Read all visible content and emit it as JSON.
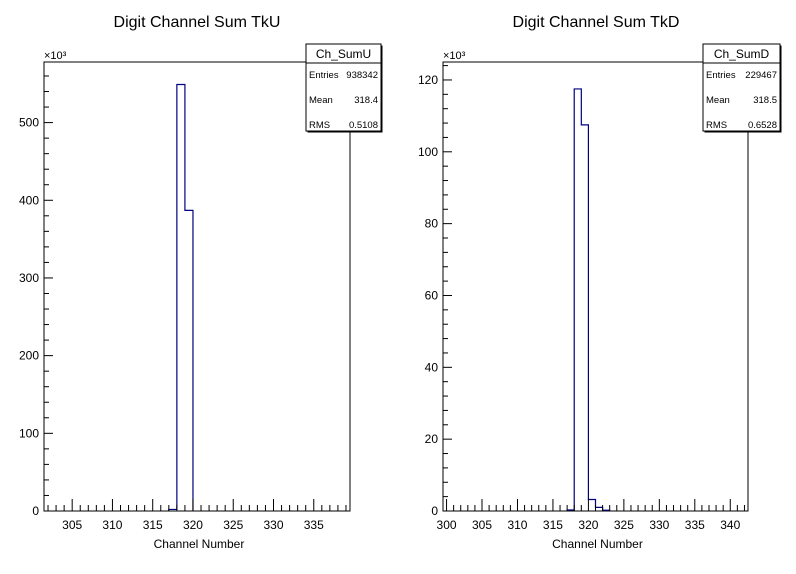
{
  "chart_data": [
    {
      "type": "bar",
      "title": "Digit Channel Sum TkU",
      "xlabel": "Channel Number",
      "ylabel": "",
      "y_multiplier": "×10³",
      "xlim": [
        301.5,
        339.5
      ],
      "ylim": [
        0,
        578
      ],
      "x_major_ticks": [
        305,
        310,
        315,
        320,
        325,
        330,
        335
      ],
      "y_major_ticks": [
        0,
        100,
        200,
        300,
        400,
        500
      ],
      "bin_width": 1,
      "bins": [
        {
          "x": 317.5,
          "value": 2
        },
        {
          "x": 318.5,
          "value": 549
        },
        {
          "x": 319.5,
          "value": 387
        }
      ],
      "stats": {
        "name": "Ch_SumU",
        "rows": [
          {
            "label": "Entries",
            "value": "938342"
          },
          {
            "label": "Mean",
            "value": "318.4"
          },
          {
            "label": "RMS",
            "value": "0.5108"
          }
        ]
      },
      "line_color": "#000080"
    },
    {
      "type": "bar",
      "title": "Digit Channel Sum TkD",
      "xlabel": "Channel Number",
      "ylabel": "",
      "y_multiplier": "×10³",
      "xlim": [
        299.5,
        342.5
      ],
      "ylim": [
        0,
        125
      ],
      "x_major_ticks": [
        300,
        305,
        310,
        315,
        320,
        325,
        330,
        335,
        340
      ],
      "y_major_ticks": [
        0,
        20,
        40,
        60,
        80,
        100,
        120
      ],
      "bin_width": 1,
      "bins": [
        {
          "x": 317.5,
          "value": 0.3
        },
        {
          "x": 318.5,
          "value": 117.5
        },
        {
          "x": 319.5,
          "value": 107.5
        },
        {
          "x": 320.5,
          "value": 3.2
        },
        {
          "x": 321.5,
          "value": 1.0
        },
        {
          "x": 322.5,
          "value": 0.2
        }
      ],
      "stats": {
        "name": "Ch_SumD",
        "rows": [
          {
            "label": "Entries",
            "value": "229467"
          },
          {
            "label": "Mean",
            "value": "318.5"
          },
          {
            "label": "RMS",
            "value": "0.6528"
          }
        ]
      },
      "line_color": "#000080"
    }
  ]
}
